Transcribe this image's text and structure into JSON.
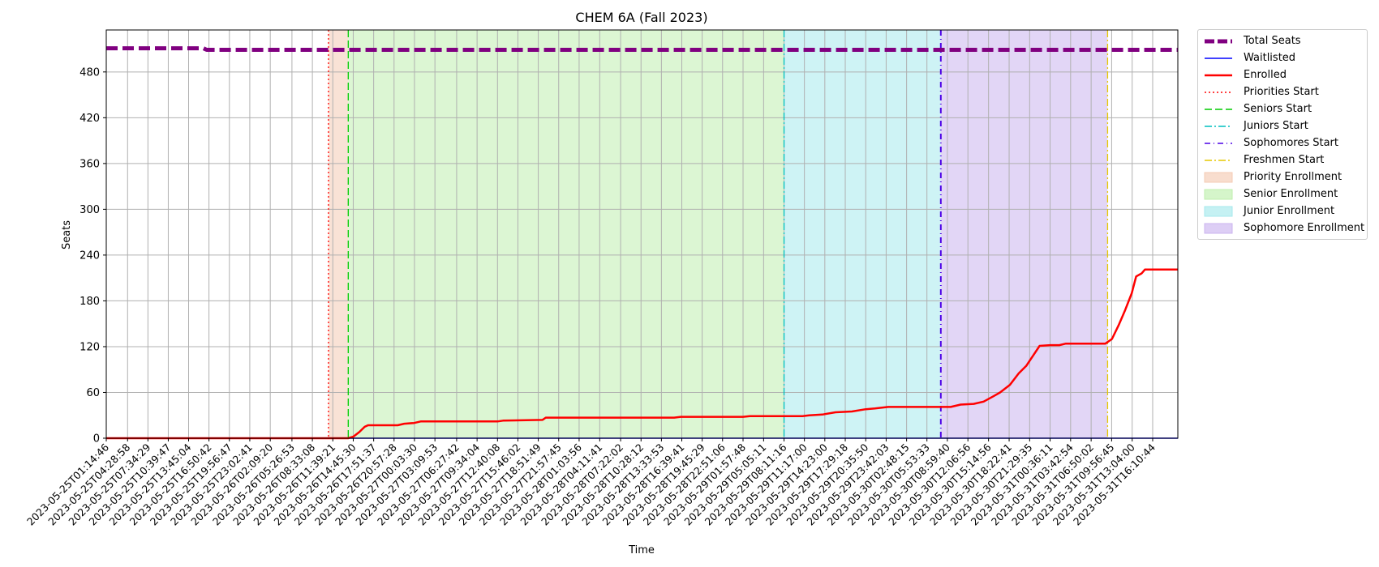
{
  "chart_data": {
    "type": "line",
    "title": "CHEM 6A (Fall 2023)",
    "xlabel": "Time",
    "ylabel": "Seats",
    "x_start": "2023-05-25T01:14:46",
    "x_end": "2023-05-31T20:00:00",
    "ylim": [
      0,
      535
    ],
    "yticks": [
      0,
      60,
      120,
      180,
      240,
      300,
      360,
      420,
      480
    ],
    "grid": true,
    "legend_position": "outside-right",
    "xtick_labels": [
      "2023-05-25T01:14:46",
      "2023-05-25T04:28:58",
      "2023-05-25T07:34:29",
      "2023-05-25T10:39:47",
      "2023-05-25T13:45:04",
      "2023-05-25T16:50:42",
      "2023-05-25T19:56:47",
      "2023-05-25T23:02:41",
      "2023-05-26T02:09:20",
      "2023-05-26T05:26:53",
      "2023-05-26T08:33:08",
      "2023-05-26T11:39:21",
      "2023-05-26T14:45:30",
      "2023-05-26T17:51:37",
      "2023-05-26T20:57:28",
      "2023-05-27T00:03:30",
      "2023-05-27T03:09:53",
      "2023-05-27T06:27:42",
      "2023-05-27T09:34:04",
      "2023-05-27T12:40:08",
      "2023-05-27T15:46:02",
      "2023-05-27T18:51:49",
      "2023-05-27T21:57:45",
      "2023-05-28T01:03:56",
      "2023-05-28T04:11:41",
      "2023-05-28T07:22:02",
      "2023-05-28T10:28:12",
      "2023-05-28T13:33:53",
      "2023-05-28T16:39:41",
      "2023-05-28T19:45:29",
      "2023-05-28T22:51:06",
      "2023-05-29T01:57:48",
      "2023-05-29T05:05:11",
      "2023-05-29T08:11:16",
      "2023-05-29T11:17:00",
      "2023-05-29T14:23:00",
      "2023-05-29T17:29:18",
      "2023-05-29T20:35:50",
      "2023-05-29T23:42:03",
      "2023-05-30T02:48:15",
      "2023-05-30T05:53:33",
      "2023-05-30T08:59:40",
      "2023-05-30T12:06:56",
      "2023-05-30T15:14:56",
      "2023-05-30T18:22:41",
      "2023-05-30T21:29:35",
      "2023-05-31T00:36:11",
      "2023-05-31T03:42:54",
      "2023-05-31T06:50:02",
      "2023-05-31T09:56:45",
      "2023-05-31T13:04:00",
      "2023-05-31T16:10:44"
    ],
    "series": [
      {
        "name": "Total Seats",
        "color": "#800080",
        "style": "dashed",
        "points": [
          [
            "2023-05-25T01:14:46",
            511
          ],
          [
            "2023-05-25T16:00:00",
            511
          ],
          [
            "2023-05-25T16:30:00",
            509
          ],
          [
            "2023-05-31T20:00:00",
            509
          ]
        ]
      },
      {
        "name": "Waitlisted",
        "color": "#0000ff",
        "style": "solid",
        "points": [
          [
            "2023-05-25T01:14:46",
            0
          ],
          [
            "2023-05-31T20:00:00",
            0
          ]
        ]
      },
      {
        "name": "Enrolled",
        "color": "#ff0000",
        "style": "solid",
        "points": [
          [
            "2023-05-25T01:14:46",
            0
          ],
          [
            "2023-05-26T14:00:00",
            0
          ],
          [
            "2023-05-26T14:45:30",
            2
          ],
          [
            "2023-05-26T15:40:00",
            8
          ],
          [
            "2023-05-26T16:30:00",
            15
          ],
          [
            "2023-05-26T17:00:00",
            17
          ],
          [
            "2023-05-26T21:30:00",
            17
          ],
          [
            "2023-05-26T22:30:00",
            19
          ],
          [
            "2023-05-27T00:00:00",
            20
          ],
          [
            "2023-05-27T01:00:00",
            22
          ],
          [
            "2023-05-27T12:40:08",
            22
          ],
          [
            "2023-05-27T13:30:00",
            23
          ],
          [
            "2023-05-27T19:30:00",
            24
          ],
          [
            "2023-05-27T20:00:00",
            27
          ],
          [
            "2023-05-28T15:30:00",
            27
          ],
          [
            "2023-05-28T16:30:00",
            28
          ],
          [
            "2023-05-29T01:57:48",
            28
          ],
          [
            "2023-05-29T03:00:00",
            29
          ],
          [
            "2023-05-29T11:00:00",
            29
          ],
          [
            "2023-05-29T12:00:00",
            30
          ],
          [
            "2023-05-29T14:00:00",
            31
          ],
          [
            "2023-05-29T16:00:00",
            34
          ],
          [
            "2023-05-29T18:30:00",
            35
          ],
          [
            "2023-05-29T20:35:50",
            38
          ],
          [
            "2023-05-29T22:00:00",
            39
          ],
          [
            "2023-05-30T00:00:00",
            41
          ],
          [
            "2023-05-30T09:30:00",
            41
          ],
          [
            "2023-05-30T11:00:00",
            44
          ],
          [
            "2023-05-30T13:00:00",
            45
          ],
          [
            "2023-05-30T14:30:00",
            48
          ],
          [
            "2023-05-30T16:00:00",
            55
          ],
          [
            "2023-05-30T17:00:00",
            60
          ],
          [
            "2023-05-30T18:30:00",
            70
          ],
          [
            "2023-05-30T19:50:00",
            85
          ],
          [
            "2023-05-30T21:00:00",
            95
          ],
          [
            "2023-05-30T22:00:00",
            108
          ],
          [
            "2023-05-30T23:00:00",
            121
          ],
          [
            "2023-05-31T00:36:11",
            122
          ],
          [
            "2023-05-31T02:00:00",
            122
          ],
          [
            "2023-05-31T03:00:00",
            124
          ],
          [
            "2023-05-31T09:00:00",
            124
          ],
          [
            "2023-05-31T10:00:00",
            130
          ],
          [
            "2023-05-31T11:00:00",
            148
          ],
          [
            "2023-05-31T12:00:00",
            168
          ],
          [
            "2023-05-31T13:00:00",
            190
          ],
          [
            "2023-05-31T13:40:00",
            212
          ],
          [
            "2023-05-31T14:30:00",
            216
          ],
          [
            "2023-05-31T15:00:00",
            221
          ],
          [
            "2023-05-31T20:00:00",
            221
          ]
        ]
      }
    ],
    "vlines": [
      {
        "name": "Priorities Start",
        "x": "2023-05-26T11:00:00",
        "color": "#ff0000",
        "style": "dotted"
      },
      {
        "name": "Seniors Start",
        "x": "2023-05-26T14:00:00",
        "color": "#00cc00",
        "style": "dashed"
      },
      {
        "name": "Juniors Start",
        "x": "2023-05-29T08:11:16",
        "color": "#00bfbf",
        "style": "dashdot"
      },
      {
        "name": "Sophomores Start",
        "x": "2023-05-30T08:00:00",
        "color": "#4b00e6",
        "style": "dashdot-dense"
      },
      {
        "name": "Freshmen Start",
        "x": "2023-05-31T09:20:00",
        "color": "#e6c800",
        "style": "dashdot"
      }
    ],
    "spans": [
      {
        "name": "Priority Enrollment",
        "from": "2023-05-26T11:00:00",
        "to": "2023-05-26T14:00:00",
        "color": "#f4cbb4"
      },
      {
        "name": "Senior Enrollment",
        "from": "2023-05-26T14:00:00",
        "to": "2023-05-29T08:11:16",
        "color": "#bfefae"
      },
      {
        "name": "Junior Enrollment",
        "from": "2023-05-29T08:11:16",
        "to": "2023-05-30T08:00:00",
        "color": "#a6e9ed"
      },
      {
        "name": "Sophomore Enrollment",
        "from": "2023-05-30T08:00:00",
        "to": "2023-05-31T09:20:00",
        "color": "#cbb4ef"
      }
    ]
  }
}
